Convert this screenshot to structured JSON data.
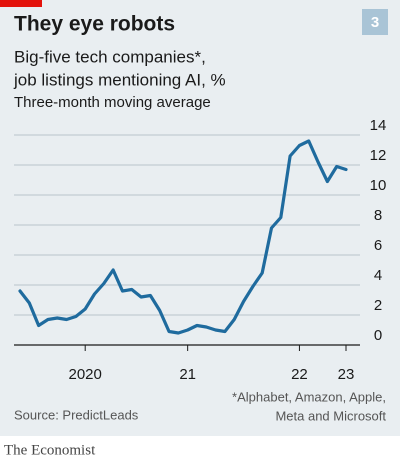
{
  "chart_data": {
    "type": "line",
    "title": "They eye robots",
    "badge": "3",
    "subtitle": [
      "Big-five tech companies*,",
      "job listings mentioning AI, %"
    ],
    "note": "Three-month moving average",
    "categories": [
      null,
      null,
      null,
      null,
      null,
      null,
      null,
      "2020",
      null,
      null,
      null,
      null,
      null,
      null,
      null,
      null,
      null,
      null,
      "21",
      null,
      null,
      null,
      null,
      null,
      null,
      null,
      null,
      null,
      null,
      null,
      "22",
      null,
      null,
      null,
      null,
      "23"
    ],
    "series": [
      {
        "name": "AI job listings",
        "color": "#1f6b9e",
        "values": [
          3.6,
          2.8,
          1.3,
          1.7,
          1.8,
          1.7,
          1.9,
          2.4,
          3.4,
          4.1,
          5.0,
          3.6,
          3.7,
          3.2,
          3.3,
          2.3,
          0.9,
          0.8,
          1.0,
          1.3,
          1.2,
          1.0,
          0.9,
          1.7,
          2.9,
          3.9,
          4.8,
          7.8,
          8.5,
          12.6,
          13.3,
          13.6,
          12.2,
          10.9,
          11.9,
          11.7
        ]
      }
    ],
    "ylim": [
      0,
      14
    ],
    "yticks": [
      0,
      2,
      4,
      6,
      8,
      10,
      12,
      14
    ],
    "grid": true,
    "source": "Source: PredictLeads",
    "footnote": [
      "*Alphabet, Amazon, Apple,",
      "Meta and Microsoft"
    ],
    "brand": "The Economist"
  }
}
